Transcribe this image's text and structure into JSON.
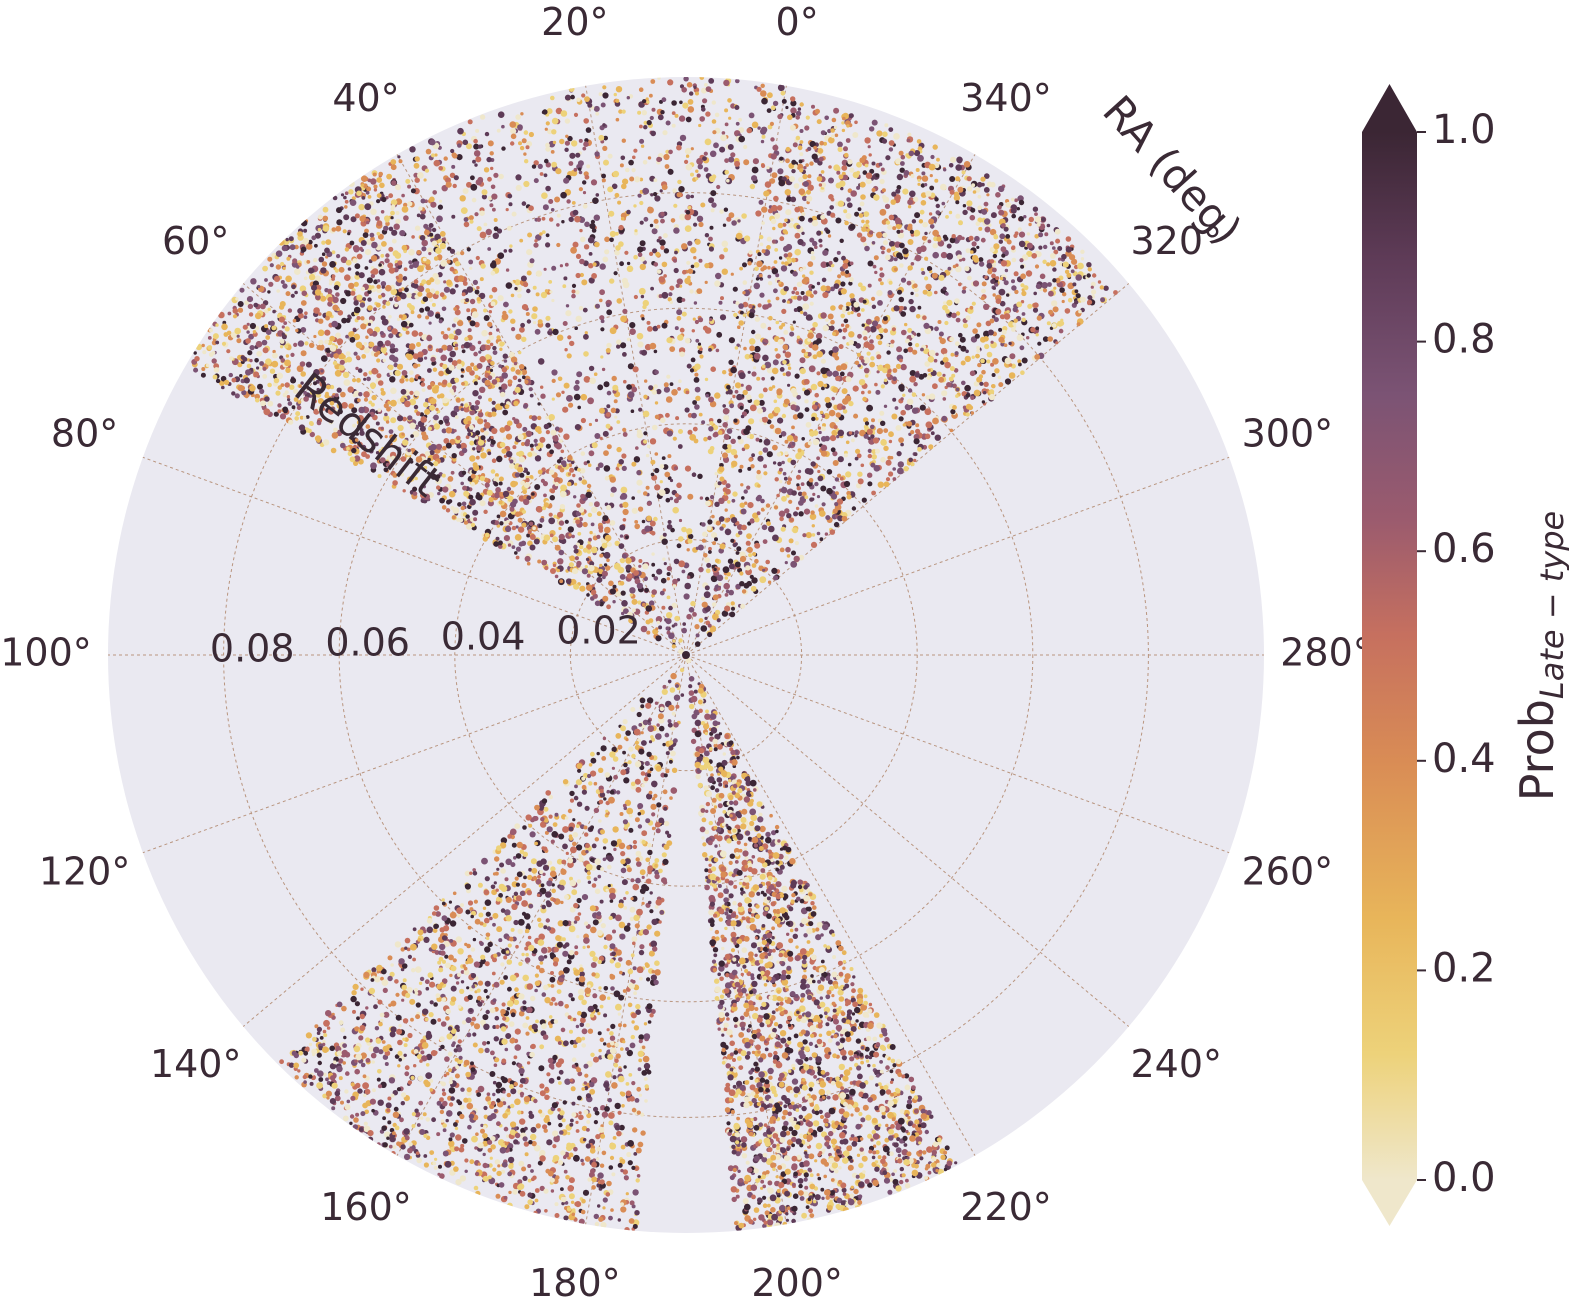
{
  "chart_data": {
    "type": "scatter",
    "projection": "polar",
    "theta_label": "RA (deg)",
    "r_label": "Redshift",
    "theta_ticks": [
      "0°",
      "20°",
      "40°",
      "60°",
      "80°",
      "100°",
      "120°",
      "140°",
      "160°",
      "180°",
      "200°",
      "220°",
      "240°",
      "260°",
      "280°",
      "300°",
      "320°",
      "340°"
    ],
    "r_ticks": [
      "0.02",
      "0.04",
      "0.06",
      "0.08"
    ],
    "rlim": [
      0,
      0.1
    ],
    "grid": true,
    "background_color": "#eae9f1",
    "colorbar": {
      "label_main": "Prob",
      "label_sub": "Late − type",
      "ticks": [
        "0.0",
        "0.2",
        "0.4",
        "0.6",
        "0.8",
        "1.0"
      ],
      "range": [
        0,
        1
      ],
      "extend": "both",
      "colors": [
        "#efe7cb",
        "#edd27a",
        "#e8b55a",
        "#d98c55",
        "#c6705f",
        "#9b5b6e",
        "#7b5374",
        "#5e3b57",
        "#3b2634"
      ]
    },
    "series": [
      {
        "ra_range": [
          320,
          360
        ],
        "z_range": [
          0.0,
          0.098
        ],
        "note_density": "high"
      },
      {
        "ra_range": [
          0,
          40
        ],
        "z_range": [
          0.0,
          0.1
        ],
        "note_density": "medium"
      },
      {
        "ra_range": [
          40,
          70
        ],
        "z_range": [
          0.0,
          0.1
        ],
        "note_density": "high"
      },
      {
        "ra_range": [
          145,
          185
        ],
        "z_range": [
          0.0,
          0.1
        ],
        "note_density": "high"
      },
      {
        "ra_range": [
          195,
          218
        ],
        "z_range": [
          0.0,
          0.1
        ],
        "note_density": "high"
      }
    ]
  }
}
